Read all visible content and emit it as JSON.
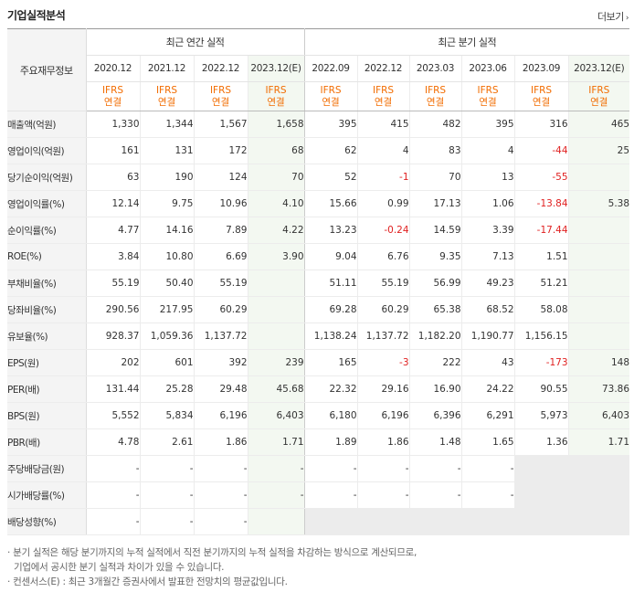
{
  "header": {
    "title": "기업실적분석",
    "more_label": "더보기",
    "more_icon": "chevron-right-icon"
  },
  "table": {
    "corner_label": "주요재무정보",
    "group_annual": "최근 연간 실적",
    "group_quarter": "최근 분기 실적",
    "annual_periods": [
      "2020.12",
      "2021.12",
      "2022.12",
      "2023.12(E)"
    ],
    "quarter_periods": [
      "2022.09",
      "2022.12",
      "2023.03",
      "2023.06",
      "2023.09",
      "2023.12(E)"
    ],
    "basis_top": "IFRS",
    "basis_bottom": "연결",
    "rows": [
      {
        "label": "매출액(억원)",
        "values": [
          "1,330",
          "1,344",
          "1,567",
          "1,658",
          "395",
          "415",
          "482",
          "395",
          "316",
          "465"
        ]
      },
      {
        "label": "영업이익(억원)",
        "values": [
          "161",
          "131",
          "172",
          "68",
          "62",
          "4",
          "83",
          "4",
          "-44",
          "25"
        ]
      },
      {
        "label": "당기순이익(억원)",
        "values": [
          "63",
          "190",
          "124",
          "70",
          "52",
          "-1",
          "70",
          "13",
          "-55",
          ""
        ]
      },
      {
        "label": "영업이익률(%)",
        "values": [
          "12.14",
          "9.75",
          "10.96",
          "4.10",
          "15.66",
          "0.99",
          "17.13",
          "1.06",
          "-13.84",
          "5.38"
        ]
      },
      {
        "label": "순이익률(%)",
        "values": [
          "4.77",
          "14.16",
          "7.89",
          "4.22",
          "13.23",
          "-0.24",
          "14.59",
          "3.39",
          "-17.44",
          ""
        ]
      },
      {
        "label": "ROE(%)",
        "values": [
          "3.84",
          "10.80",
          "6.69",
          "3.90",
          "9.04",
          "6.76",
          "9.35",
          "7.13",
          "1.51",
          ""
        ]
      },
      {
        "label": "부채비율(%)",
        "values": [
          "55.19",
          "50.40",
          "55.19",
          "",
          "51.11",
          "55.19",
          "56.99",
          "49.23",
          "51.21",
          ""
        ]
      },
      {
        "label": "당좌비율(%)",
        "values": [
          "290.56",
          "217.95",
          "60.29",
          "",
          "69.28",
          "60.29",
          "65.38",
          "68.52",
          "58.08",
          ""
        ]
      },
      {
        "label": "유보율(%)",
        "values": [
          "928.37",
          "1,059.36",
          "1,137.72",
          "",
          "1,138.24",
          "1,137.72",
          "1,182.20",
          "1,190.77",
          "1,156.15",
          ""
        ]
      },
      {
        "label": "EPS(원)",
        "values": [
          "202",
          "601",
          "392",
          "239",
          "165",
          "-3",
          "222",
          "43",
          "-173",
          "148"
        ]
      },
      {
        "label": "PER(배)",
        "values": [
          "131.44",
          "25.28",
          "29.48",
          "45.68",
          "22.32",
          "29.16",
          "16.90",
          "24.22",
          "90.55",
          "73.86"
        ]
      },
      {
        "label": "BPS(원)",
        "values": [
          "5,552",
          "5,834",
          "6,196",
          "6,403",
          "6,180",
          "6,196",
          "6,396",
          "6,291",
          "5,973",
          "6,403"
        ]
      },
      {
        "label": "PBR(배)",
        "values": [
          "4.78",
          "2.61",
          "1.86",
          "1.71",
          "1.89",
          "1.86",
          "1.48",
          "1.65",
          "1.36",
          "1.71"
        ]
      },
      {
        "label": "주당배당금(원)",
        "values": [
          "-",
          "-",
          "-",
          "-",
          "-",
          "-",
          "-",
          "-",
          "",
          ""
        ]
      },
      {
        "label": "시가배당률(%)",
        "values": [
          "-",
          "-",
          "-",
          "-",
          "-",
          "-",
          "-",
          "-",
          "",
          ""
        ]
      },
      {
        "label": "배당성향(%)",
        "values": [
          "-",
          "-",
          "-",
          "",
          "",
          "",
          "",
          "",
          "",
          ""
        ]
      }
    ]
  },
  "notes": {
    "line1": "분기 실적은 해당 분기까지의 누적 실적에서 직전 분기까지의 누적 실적을 차감하는 방식으로 계산되므로,",
    "line2": "기업에서 공시한 분기 실적과 차이가 있을 수 있습니다.",
    "line3": "컨센서스(E) : 최근 3개월간 증권사에서 발표한 전망치의 평균값입니다."
  },
  "colors": {
    "accent_orange": "#f26c00",
    "negative_red": "#e02020",
    "estimate_bg": "#f3f8f1"
  }
}
